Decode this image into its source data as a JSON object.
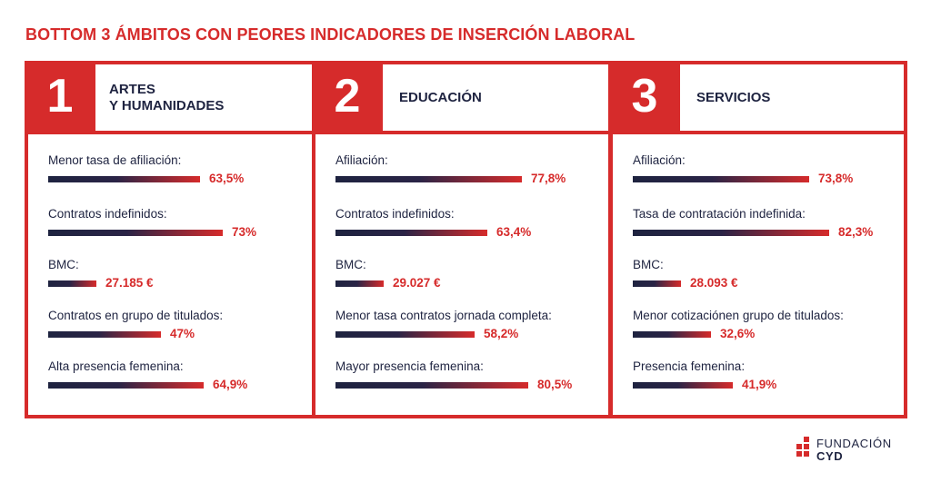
{
  "title": "BOTTOM 3 ÁMBITOS CON PEORES INDICADORES DE INSERCIÓN LABORAL",
  "colors": {
    "accent": "#d62b2b",
    "dark": "#1e2340"
  },
  "chart_data": {
    "type": "bar",
    "panels": [
      {
        "rank": "1",
        "name": "ARTES\nY HUMANIDADES",
        "indicators": [
          {
            "label": "Menor tasa de afiliación:",
            "value": 63.5,
            "display": "63,5%",
            "bar_pct": 63.5
          },
          {
            "label": "Contratos indefinidos:",
            "value": 73,
            "display": "73%",
            "bar_pct": 73
          },
          {
            "label": "BMC:",
            "value": 27185,
            "display": "27.185 €",
            "bar_pct": 20
          },
          {
            "label": "Contratos en grupo de titulados:",
            "value": 47,
            "display": "47%",
            "bar_pct": 47
          },
          {
            "label": "Alta presencia femenina:",
            "value": 64.9,
            "display": "64,9%",
            "bar_pct": 64.9
          }
        ]
      },
      {
        "rank": "2",
        "name": "EDUCACIÓN",
        "indicators": [
          {
            "label": "Afiliación:",
            "value": 77.8,
            "display": "77,8%",
            "bar_pct": 77.8
          },
          {
            "label": "Contratos indefinidos:",
            "value": 63.4,
            "display": "63,4%",
            "bar_pct": 63.4
          },
          {
            "label": "BMC:",
            "value": 29027,
            "display": "29.027 €",
            "bar_pct": 20
          },
          {
            "label": "Menor tasa contratos jornada completa:",
            "value": 58.2,
            "display": "58,2%",
            "bar_pct": 58.2
          },
          {
            "label": "Mayor presencia femenina:",
            "value": 80.5,
            "display": "80,5%",
            "bar_pct": 80.5
          }
        ]
      },
      {
        "rank": "3",
        "name": "SERVICIOS",
        "indicators": [
          {
            "label": "Afiliación:",
            "value": 73.8,
            "display": "73,8%",
            "bar_pct": 73.8
          },
          {
            "label": "Tasa de contratación indefinida:",
            "value": 82.3,
            "display": "82,3%",
            "bar_pct": 82.3
          },
          {
            "label": "BMC:",
            "value": 28093,
            "display": "28.093 €",
            "bar_pct": 20
          },
          {
            "label": "Menor cotizaciónen grupo de titulados:",
            "value": 32.6,
            "display": "32,6%",
            "bar_pct": 32.6
          },
          {
            "label": "Presencia femenina:",
            "value": 41.9,
            "display": "41,9%",
            "bar_pct": 41.9
          }
        ]
      }
    ]
  },
  "logo": {
    "line1": "FUNDACIÓN",
    "line2": "CYD"
  }
}
